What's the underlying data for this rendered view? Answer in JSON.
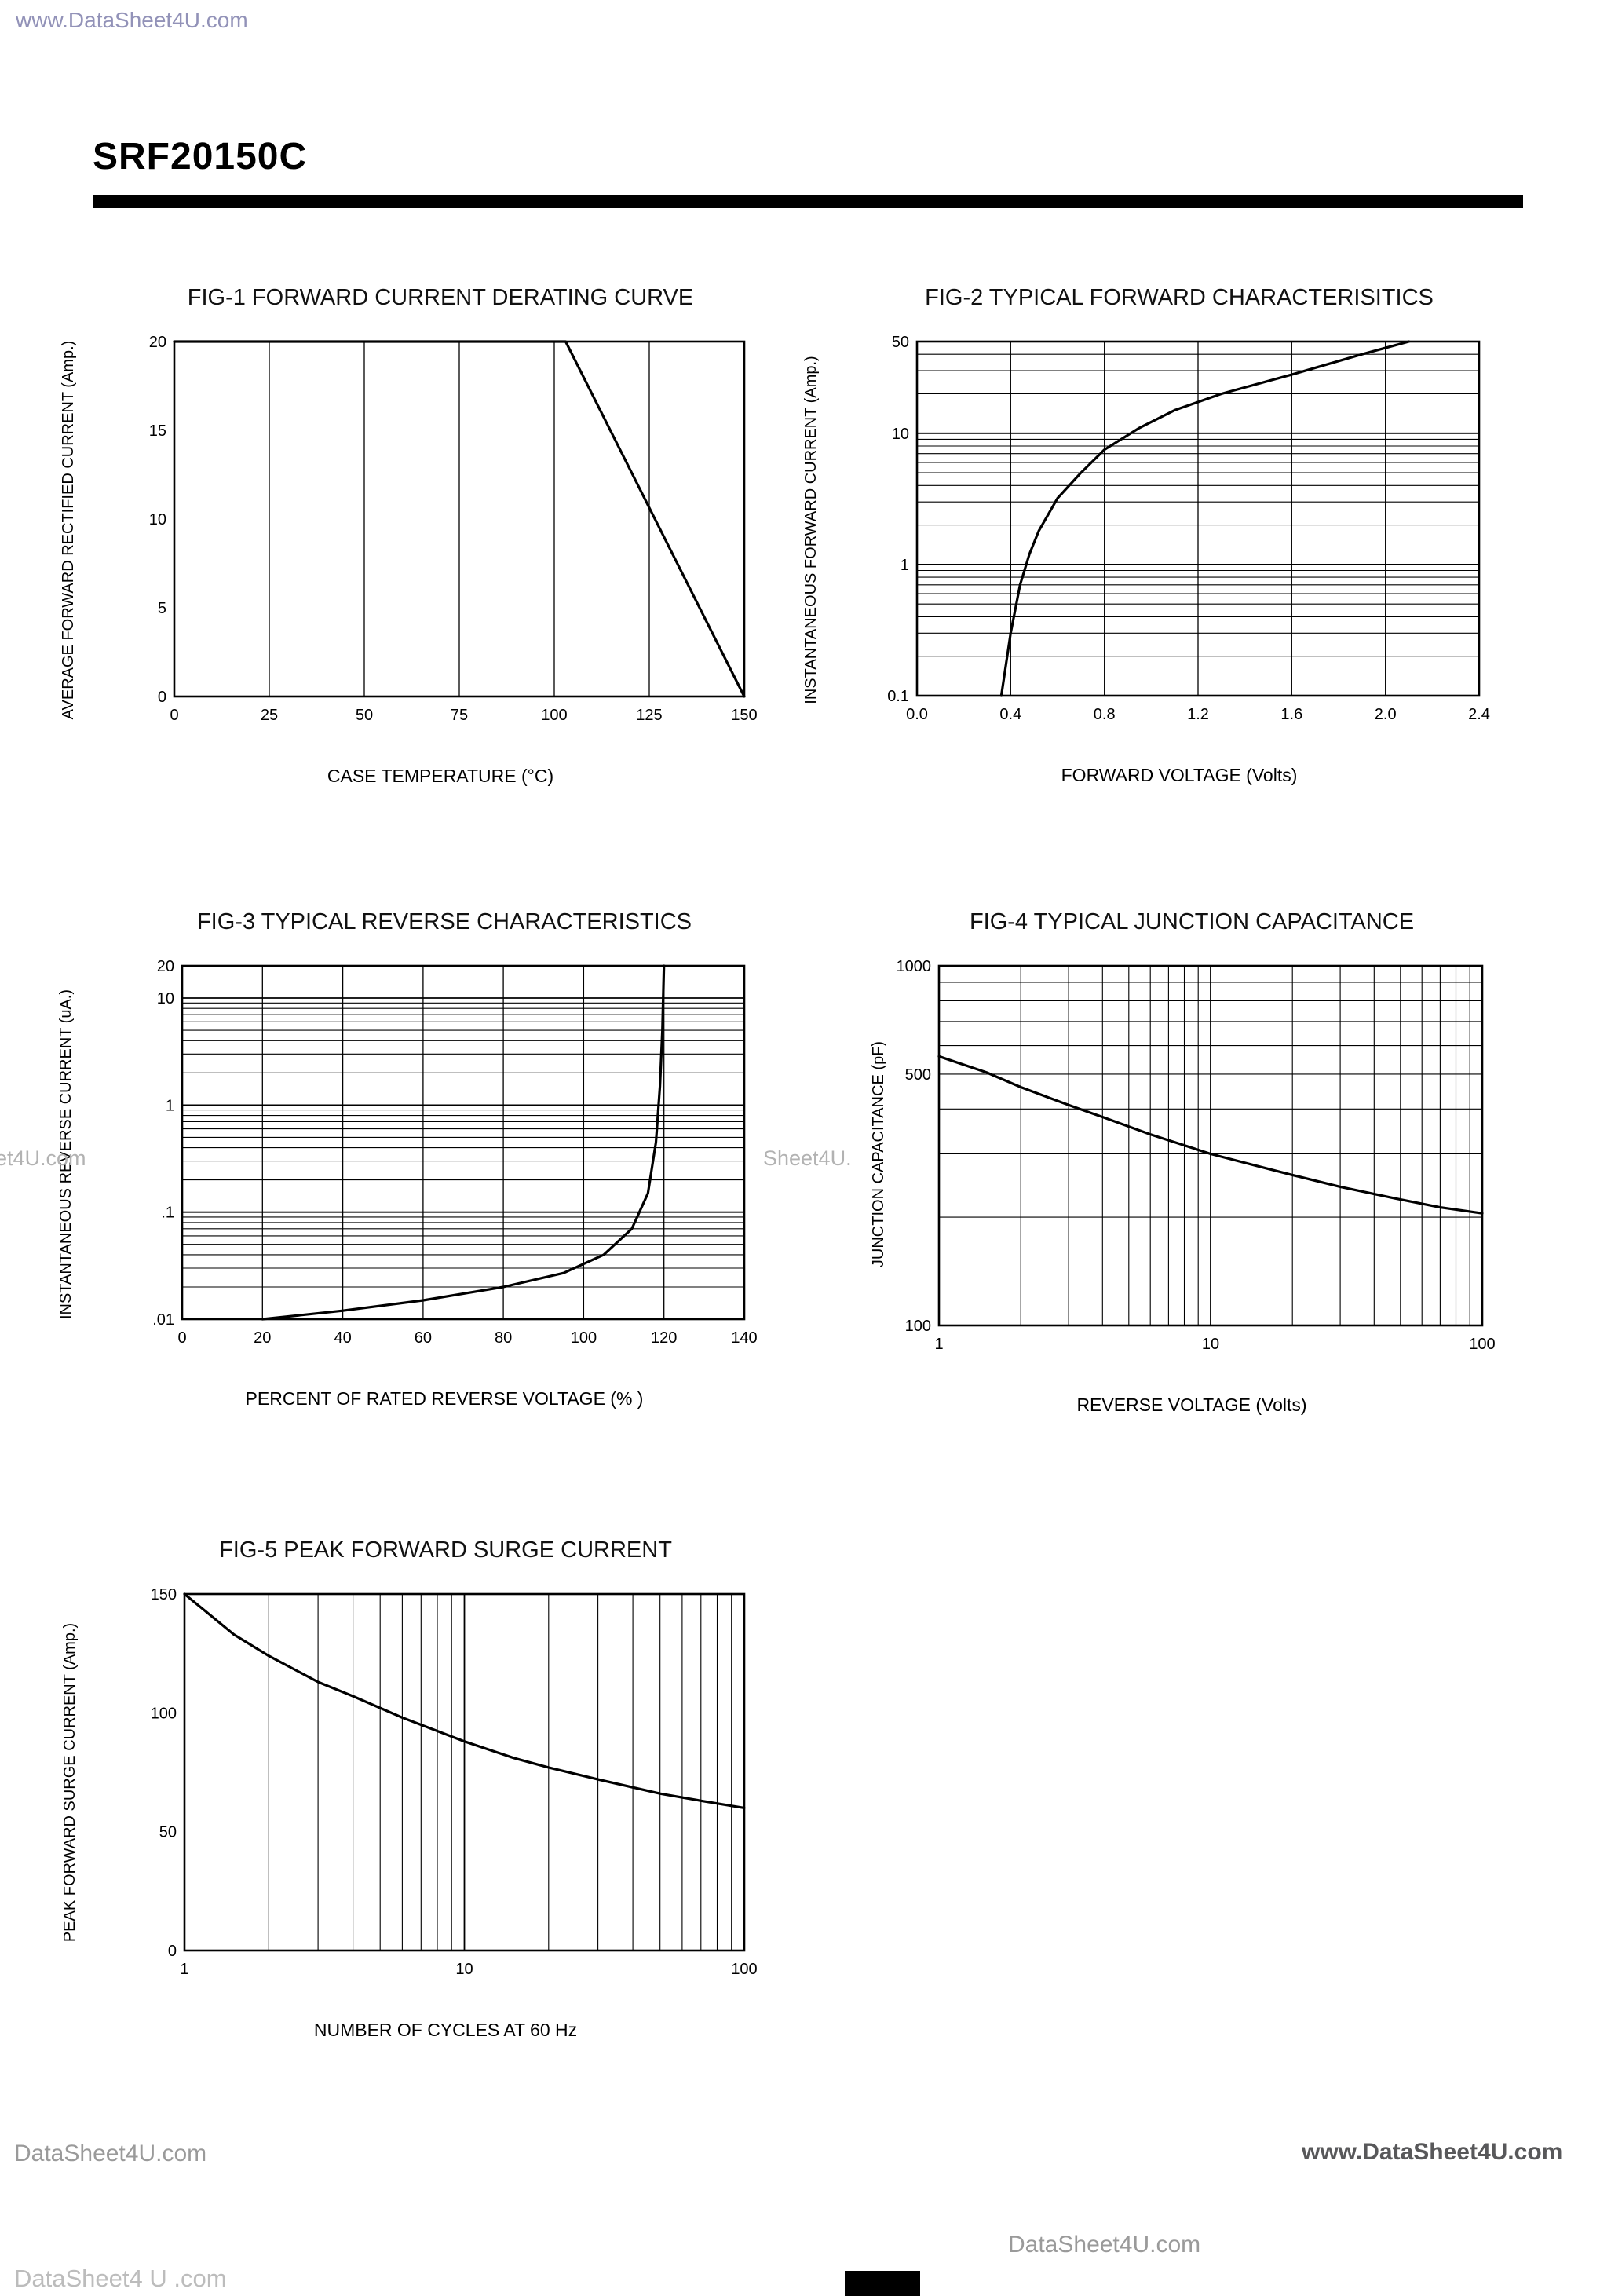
{
  "header": {
    "part_number": "SRF20150C"
  },
  "watermarks": {
    "top": "www.DataSheet4U.com",
    "mid_left": "et4U.com",
    "mid_center": "Sheet4U.",
    "bottom_left": "DataSheet4U.com",
    "bottom_right": "www.DataSheet4U.com",
    "bottom_center": "DataSheet4U.com",
    "footer": "DataSheet4 U .com"
  },
  "chart_data": [
    {
      "type": "line",
      "title": "FIG-1 FORWARD CURRENT DERATING CURVE",
      "xlabel": "CASE TEMPERATURE (°C)",
      "ylabel": "AVERAGE FORWARD RECTIFIED CURRENT (Amp.)",
      "xscale": "linear",
      "yscale": "linear",
      "xlim": [
        0,
        150
      ],
      "ylim": [
        0,
        20
      ],
      "xticks": [
        0,
        25,
        50,
        75,
        100,
        125,
        150
      ],
      "xtick_labels": [
        "0",
        "25",
        "50",
        "75",
        "100",
        "125",
        "150"
      ],
      "yticks": [
        0,
        5,
        10,
        15,
        20
      ],
      "ytick_labels": [
        "0",
        "5",
        "10",
        "15",
        "20"
      ],
      "xgrid": true,
      "ygrid": false,
      "legend": "none",
      "series": [
        {
          "name": "forward-current-derating",
          "points": [
            [
              0,
              20
            ],
            [
              103,
              20
            ],
            [
              150,
              0
            ]
          ]
        }
      ]
    },
    {
      "type": "line",
      "title": "FIG-2 TYPICAL FORWARD CHARACTERISITICS",
      "xlabel": "FORWARD VOLTAGE (Volts)",
      "ylabel": "INSTANTANEOUS FORWARD CURRENT (Amp.)",
      "xscale": "linear",
      "yscale": "log",
      "xlim": [
        0,
        2.4
      ],
      "ylim": [
        0.1,
        50
      ],
      "xticks": [
        0,
        0.4,
        0.8,
        1.2,
        1.6,
        2.0,
        2.4
      ],
      "xtick_labels": [
        "0.0",
        "0.4",
        "0.8",
        "1.2",
        "1.6",
        "2.0",
        "2.4"
      ],
      "yticks": [
        50,
        10,
        1,
        0.1
      ],
      "ytick_labels": [
        "50",
        "10",
        "1",
        "0.1"
      ],
      "xgrid": true,
      "ygrid": true,
      "legend": "none",
      "series": [
        {
          "name": "forward-characteristics",
          "points": [
            [
              0.36,
              0.1
            ],
            [
              0.4,
              0.3
            ],
            [
              0.44,
              0.7
            ],
            [
              0.48,
              1.2
            ],
            [
              0.52,
              1.8
            ],
            [
              0.6,
              3.2
            ],
            [
              0.7,
              5.0
            ],
            [
              0.8,
              7.5
            ],
            [
              0.95,
              11
            ],
            [
              1.1,
              15
            ],
            [
              1.3,
              20
            ],
            [
              1.6,
              28
            ],
            [
              1.9,
              40
            ],
            [
              2.1,
              50
            ]
          ]
        }
      ]
    },
    {
      "type": "line",
      "title": "FIG-3 TYPICAL REVERSE CHARACTERISTICS",
      "xlabel": "PERCENT OF RATED REVERSE VOLTAGE (% )",
      "ylabel": "INSTANTANEOUS REVERSE CURRENT (uA.)",
      "xscale": "linear",
      "yscale": "log",
      "xlim": [
        0,
        140
      ],
      "ylim": [
        0.01,
        20
      ],
      "xticks": [
        0,
        20,
        40,
        60,
        80,
        100,
        120,
        140
      ],
      "xtick_labels": [
        "0",
        "20",
        "40",
        "60",
        "80",
        "100",
        "120",
        "140"
      ],
      "yticks": [
        20,
        10,
        1,
        0.1,
        0.01
      ],
      "ytick_labels": [
        "20",
        "10",
        "1",
        ".1",
        ".01"
      ],
      "xgrid": true,
      "ygrid": true,
      "legend": "none",
      "series": [
        {
          "name": "reverse-characteristics",
          "points": [
            [
              20,
              0.01
            ],
            [
              40,
              0.012
            ],
            [
              60,
              0.015
            ],
            [
              80,
              0.02
            ],
            [
              95,
              0.027
            ],
            [
              105,
              0.04
            ],
            [
              112,
              0.07
            ],
            [
              116,
              0.15
            ],
            [
              118,
              0.45
            ],
            [
              119,
              1.5
            ],
            [
              119.6,
              5
            ],
            [
              120,
              20
            ]
          ]
        }
      ]
    },
    {
      "type": "line",
      "title": "FIG-4 TYPICAL JUNCTION CAPACITANCE",
      "xlabel": "REVERSE VOLTAGE (Volts)",
      "ylabel": "JUNCTION CAPACITANCE (pF)",
      "xscale": "log",
      "yscale": "log",
      "xlim": [
        1,
        100
      ],
      "ylim": [
        100,
        1000
      ],
      "xticks": [
        1,
        10,
        100
      ],
      "xtick_labels": [
        "1",
        "10",
        "100"
      ],
      "yticks": [
        1000,
        500,
        100
      ],
      "ytick_labels": [
        "1000",
        "500",
        "100"
      ],
      "xgrid": true,
      "ygrid": true,
      "legend": "none",
      "series": [
        {
          "name": "junction-capacitance",
          "points": [
            [
              1,
              560
            ],
            [
              1.5,
              505
            ],
            [
              2,
              460
            ],
            [
              3,
              410
            ],
            [
              4,
              380
            ],
            [
              6,
              340
            ],
            [
              10,
              300
            ],
            [
              15,
              277
            ],
            [
              20,
              262
            ],
            [
              30,
              243
            ],
            [
              50,
              224
            ],
            [
              70,
              213
            ],
            [
              100,
              205
            ]
          ]
        }
      ]
    },
    {
      "type": "line",
      "title": "FIG-5 PEAK FORWARD SURGE CURRENT",
      "xlabel": "NUMBER OF CYCLES AT 60 Hz",
      "ylabel": "PEAK FORWARD SURGE  CURRENT (Amp.)",
      "xscale": "log",
      "yscale": "linear",
      "xlim": [
        1,
        100
      ],
      "ylim": [
        0,
        150
      ],
      "xticks": [
        1,
        10,
        100
      ],
      "xtick_labels": [
        "1",
        "10",
        "100"
      ],
      "yticks": [
        150,
        100,
        50,
        0
      ],
      "ytick_labels": [
        "150",
        "100",
        "50",
        "0"
      ],
      "xgrid": true,
      "ygrid": false,
      "legend": "none",
      "series": [
        {
          "name": "peak-forward-surge-current",
          "points": [
            [
              1,
              150
            ],
            [
              1.5,
              133
            ],
            [
              2,
              124
            ],
            [
              3,
              113
            ],
            [
              4,
              107
            ],
            [
              6,
              98
            ],
            [
              10,
              88
            ],
            [
              15,
              81
            ],
            [
              20,
              77
            ],
            [
              30,
              72
            ],
            [
              50,
              66
            ],
            [
              70,
              63
            ],
            [
              100,
              60
            ]
          ]
        }
      ]
    }
  ]
}
